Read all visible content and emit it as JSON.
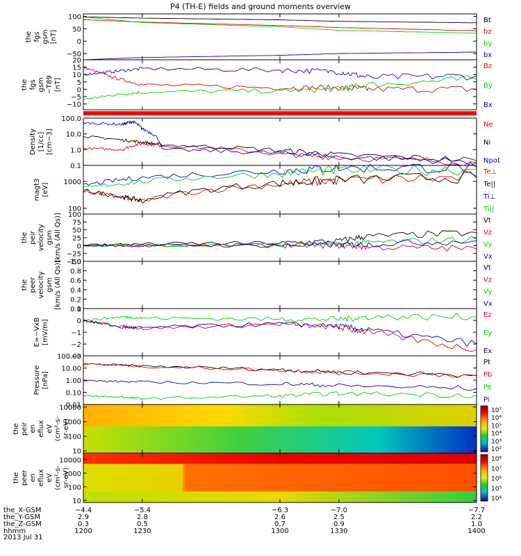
{
  "title": "P4 (TH-E) fields and ground moments overview",
  "chart_data": [
    {
      "id": "fgs-gsm",
      "type": "line",
      "ylabel": [
        "the",
        "fgs",
        "gsm",
        "[nT]"
      ],
      "ylim": [
        -75,
        110
      ],
      "ytick_values": [
        -50,
        0,
        50,
        100
      ],
      "ytick_labels": [
        "−50",
        "0",
        "50",
        "100"
      ],
      "series": [
        {
          "name": "Bt",
          "color": "#000000",
          "x": [
            1200,
            1230,
            1300,
            1330,
            1400
          ],
          "values": [
            98,
            93,
            86,
            80,
            74
          ]
        },
        {
          "name": "bz",
          "color": "#dd0000",
          "x": [
            1200,
            1230,
            1300,
            1330,
            1400
          ],
          "values": [
            87,
            77,
            63,
            55,
            42
          ]
        },
        {
          "name": "by",
          "color": "#00cc00",
          "x": [
            1200,
            1230,
            1300,
            1330,
            1400
          ],
          "values": [
            98,
            75,
            58,
            44,
            32
          ]
        },
        {
          "name": "bx",
          "color": "#0000cc",
          "x": [
            1200,
            1230,
            1300,
            1330,
            1400
          ],
          "values": [
            -75,
            -66,
            -57,
            -50,
            -44
          ]
        }
      ]
    },
    {
      "id": "fgs-gsm-t89",
      "type": "line",
      "ylabel": [
        "the",
        "fgs",
        "gsm",
        "−T89",
        "[nT]"
      ],
      "ylim": [
        -14,
        20
      ],
      "ytick_values": [
        -10,
        -5,
        0,
        5,
        10,
        15,
        20
      ],
      "ytick_labels": [
        "−10",
        "−5",
        "0",
        "5",
        "10",
        "15",
        "20"
      ],
      "series": [
        {
          "name": "Bz",
          "color": "#dd0000",
          "x": [
            1200,
            1215,
            1230,
            1300,
            1330,
            1345,
            1400
          ],
          "values": [
            15,
            8,
            3,
            1,
            1,
            0,
            0
          ]
        },
        {
          "name": "By",
          "color": "#00cc00",
          "x": [
            1200,
            1215,
            1230,
            1300,
            1330,
            1345,
            1400
          ],
          "values": [
            -7,
            -4,
            -2,
            -1,
            0,
            3,
            7
          ]
        },
        {
          "name": "Bx",
          "color": "#0000cc",
          "x": [
            1200,
            1215,
            1230,
            1300,
            1330,
            1345,
            1400
          ],
          "values": [
            10,
            12,
            14,
            13,
            12,
            8,
            9
          ]
        }
      ]
    },
    {
      "id": "density",
      "type": "line",
      "scale": "log",
      "ylabel": [
        "Density",
        "[1/cc]",
        "[cm−3]"
      ],
      "ylim": [
        0.1,
        100
      ],
      "ytick_values": [
        0.1,
        1.0,
        10.0,
        100.0
      ],
      "ytick_labels": [
        "0.1",
        "1.0",
        "10.0",
        "100.0"
      ],
      "series": [
        {
          "name": "Ne",
          "color": "#dd0000",
          "x": [
            1200,
            1220,
            1230,
            1240,
            1300,
            1330,
            1400
          ],
          "values": [
            1.2,
            1.0,
            2.5,
            1.8,
            0.5,
            0.3,
            0.15
          ]
        },
        {
          "name": "Ni",
          "color": "#000000",
          "x": [
            1200,
            1220,
            1230,
            1240,
            1300,
            1330,
            1400
          ],
          "values": [
            7.0,
            4.0,
            3.0,
            2.0,
            0.9,
            0.45,
            0.2
          ]
        },
        {
          "name": "Npot",
          "color": "#0000cc",
          "x": [
            1200,
            1220,
            1225,
            1230,
            1240,
            1300,
            1330,
            1400
          ],
          "values": [
            50,
            40,
            60,
            20,
            1.0,
            0.6,
            0.35,
            0.15
          ]
        }
      ]
    },
    {
      "id": "temperature",
      "type": "line",
      "scale": "log",
      "ylabel": [
        "magt3",
        "[eV]"
      ],
      "ylim": [
        60,
        4000
      ],
      "ytick_values": [
        100,
        1000
      ],
      "ytick_labels": [
        "100",
        "1000"
      ],
      "series": [
        {
          "name": "Te⊥",
          "color": "#dd0000",
          "x": [
            1200,
            1220,
            1230,
            1300,
            1330,
            1400
          ],
          "values": [
            420,
            250,
            180,
            800,
            1100,
            1400
          ]
        },
        {
          "name": "Te||",
          "color": "#000000",
          "x": [
            1200,
            1220,
            1230,
            1300,
            1330,
            1400
          ],
          "values": [
            450,
            260,
            190,
            850,
            1150,
            1500
          ]
        },
        {
          "name": "Ti⊥",
          "color": "#0000cc",
          "x": [
            1200,
            1230,
            1300,
            1330,
            1400
          ],
          "values": [
            700,
            1400,
            2500,
            3200,
            3400
          ]
        },
        {
          "name": "Ti||",
          "color": "#00cc00",
          "x": [
            1200,
            1230,
            1300,
            1330,
            1400
          ],
          "values": [
            550,
            1000,
            2000,
            2600,
            2800
          ]
        }
      ]
    },
    {
      "id": "peir-velocity",
      "type": "line",
      "ylabel": [
        "the",
        "peir",
        "velocity",
        "gsm",
        "[km/s (All Qs)]"
      ],
      "ylim": [
        -50,
        100
      ],
      "ytick_values": [
        -50,
        -25,
        0,
        25,
        50,
        75,
        100
      ],
      "ytick_labels": [
        "−50",
        "−25",
        "0",
        "25",
        "50",
        "75",
        "100"
      ],
      "series": [
        {
          "name": "Vt",
          "color": "#000000",
          "x": [
            1200,
            1230,
            1300,
            1330,
            1345,
            1400
          ],
          "values": [
            2,
            5,
            8,
            15,
            30,
            40
          ]
        },
        {
          "name": "Vz",
          "color": "#dd0000",
          "x": [
            1200,
            1230,
            1300,
            1330,
            1345,
            1400
          ],
          "values": [
            0,
            0,
            0,
            0,
            -5,
            -10
          ]
        },
        {
          "name": "Vy",
          "color": "#00cc00",
          "x": [
            1200,
            1230,
            1300,
            1330,
            1345,
            1400
          ],
          "values": [
            0,
            1,
            2,
            4,
            10,
            20
          ]
        },
        {
          "name": "Vx",
          "color": "#0000cc",
          "x": [
            1200,
            1230,
            1300,
            1330,
            1345,
            1400
          ],
          "values": [
            0,
            0,
            1,
            2,
            5,
            15
          ]
        }
      ]
    },
    {
      "id": "peer-velocity",
      "type": "line",
      "ylabel": [
        "the",
        "peer",
        "velocity",
        "gsm",
        "[km/s (All Qs)]"
      ],
      "ylim": [
        0,
        1
      ],
      "ytick_values": [
        0,
        0.2,
        0.4,
        0.6,
        0.8,
        1.0
      ],
      "ytick_labels": [
        "0.0",
        "0.2",
        "0.4",
        "0.6",
        "0.8",
        "1.0"
      ],
      "series": [
        {
          "name": "Vt",
          "color": "#000000",
          "x": [],
          "values": []
        },
        {
          "name": "Vz",
          "color": "#dd0000",
          "x": [],
          "values": []
        },
        {
          "name": "Vy",
          "color": "#00cc00",
          "x": [],
          "values": []
        },
        {
          "name": "Vx",
          "color": "#0000cc",
          "x": [],
          "values": []
        }
      ]
    },
    {
      "id": "electric-field",
      "type": "line",
      "ylabel": [
        "E=−VxB",
        "[mV/m]"
      ],
      "ylim": [
        -3,
        1
      ],
      "ytick_values": [
        -3,
        -2,
        -1,
        0,
        1
      ],
      "ytick_labels": [
        "−3",
        "−2",
        "−1",
        "0",
        "1"
      ],
      "series": [
        {
          "name": "Ez",
          "color": "#dd0000",
          "x": [
            1200,
            1220,
            1230,
            1300,
            1330,
            1345,
            1400
          ],
          "values": [
            0,
            -0.5,
            -0.7,
            -0.3,
            -0.6,
            -1.0,
            -2.5
          ]
        },
        {
          "name": "Ey",
          "color": "#00cc00",
          "x": [
            1200,
            1220,
            1230,
            1300,
            1330,
            1345,
            1400
          ],
          "values": [
            0,
            0.3,
            0.2,
            0.1,
            0.1,
            0.3,
            0.3
          ]
        },
        {
          "name": "Ex",
          "color": "#0000cc",
          "x": [
            1200,
            1220,
            1230,
            1300,
            1330,
            1345,
            1400
          ],
          "values": [
            0,
            -0.6,
            -0.6,
            -0.3,
            -0.5,
            -0.8,
            -2.0
          ]
        }
      ]
    },
    {
      "id": "pressure",
      "type": "line",
      "scale": "log",
      "ylabel": [
        "Pressure",
        "[nPa]"
      ],
      "ylim": [
        0.01,
        100
      ],
      "ytick_values": [
        0.01,
        0.1,
        1.0,
        10.0,
        100.0
      ],
      "ytick_labels": [
        "0.01",
        "0.10",
        "1.00",
        "10.00",
        "100.00"
      ],
      "series": [
        {
          "name": "Pt",
          "color": "#000000",
          "x": [
            1200,
            1230,
            1300,
            1330,
            1400
          ],
          "values": [
            22,
            14,
            7,
            4.5,
            2.5
          ]
        },
        {
          "name": "Pb",
          "color": "#dd0000",
          "x": [
            1200,
            1230,
            1300,
            1330,
            1400
          ],
          "values": [
            21,
            13,
            6.5,
            4.2,
            2.3
          ]
        },
        {
          "name": "Pe",
          "color": "#00cc00",
          "x": [
            1200,
            1220,
            1230,
            1300,
            1330,
            1400
          ],
          "values": [
            0.05,
            0.04,
            0.03,
            0.05,
            0.08,
            0.06
          ]
        },
        {
          "name": "Pi",
          "color": "#0000cc",
          "x": [
            1200,
            1230,
            1300,
            1330,
            1400
          ],
          "values": [
            0.9,
            0.7,
            0.5,
            0.35,
            0.2
          ]
        }
      ]
    },
    {
      "id": "peir-en-eflux",
      "type": "heatmap",
      "scale": "log",
      "ylabel": [
        "the",
        "peir",
        "en",
        "eflux",
        "eV",
        "(cm²‑s‑",
        "sr‑eV)"
      ],
      "ylim": [
        7,
        15000
      ],
      "ytick_values": [
        10,
        100,
        1000,
        10000
      ],
      "ytick_labels": [
        "10",
        "100",
        "1000",
        "10000"
      ],
      "colorbar": {
        "ticks": [
          "10⁷",
          "10⁶",
          "10⁵",
          "10⁴",
          "10³",
          "10²"
        ]
      }
    },
    {
      "id": "peer-en-eflux",
      "type": "heatmap",
      "scale": "log",
      "ylabel": [
        "the",
        "peer",
        "en",
        "eflux",
        "eV",
        "(cm²‑s‑",
        "sr‑eV)"
      ],
      "ylim": [
        7,
        30000
      ],
      "ytick_values": [
        10,
        100,
        1000,
        10000
      ],
      "ytick_labels": [
        "10",
        "100",
        "1000",
        "10000"
      ],
      "colorbar": {
        "ticks": [
          "10⁸",
          "10⁷",
          "10⁶",
          "10⁵",
          "10⁴"
        ]
      }
    }
  ],
  "xaxis": {
    "range": [
      1200,
      1400
    ],
    "rows": [
      {
        "label": "the_X-GSM",
        "values": [
          "−4.4",
          "−5.4",
          "−6.3",
          "−7.0",
          "−7.7"
        ]
      },
      {
        "label": "the_Y-GSM",
        "values": [
          "2.9",
          "2.8",
          "2.6",
          "2.5",
          "2.2"
        ]
      },
      {
        "label": "the_Z-GSM",
        "values": [
          "0.3",
          "0.5",
          "0.7",
          "0.9",
          "1.0"
        ]
      },
      {
        "label": "hhmm",
        "values": [
          "1200",
          "1230",
          "1300",
          "1330",
          "1400"
        ]
      }
    ],
    "date": "2013 Jul 31"
  }
}
